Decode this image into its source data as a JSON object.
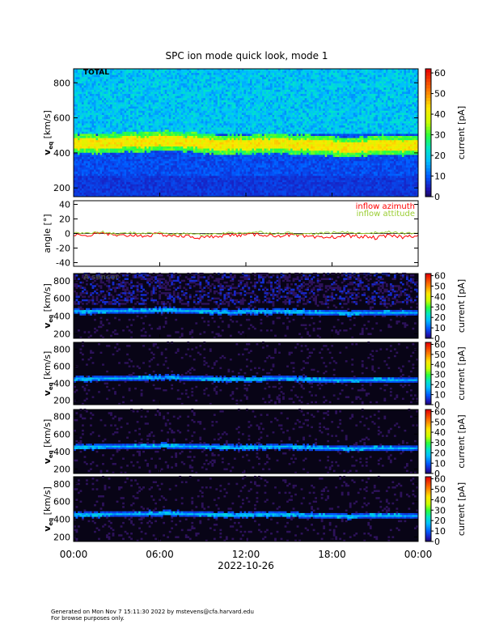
{
  "page": {
    "title": "SPC ion mode quick look, mode 1"
  },
  "chart_data": {
    "type": "heatmap",
    "title": "SPC ion mode quick look, mode 1",
    "x": {
      "ticks": [
        "00:00",
        "06:00",
        "12:00",
        "18:00",
        "00:00"
      ],
      "tick_hours": [
        0,
        6,
        12,
        18,
        24
      ],
      "date_label": "2022-10-26",
      "range_hours": [
        0,
        24
      ]
    },
    "panels": [
      {
        "id": "total",
        "type": "heatmap",
        "label": "TOTAL",
        "ylabel": "v_eq [km/s]",
        "ylabel_main": "v",
        "ylabel_sub": "eq",
        "ylabel_unit": " [km/s]",
        "yticks": [
          200,
          400,
          600,
          800
        ],
        "ylim": [
          150,
          880
        ],
        "colorbar": {
          "label": "current [pA]",
          "ticks": [
            0,
            10,
            20,
            30,
            40,
            50,
            60
          ],
          "range": [
            0,
            62
          ],
          "palette": "rainbow"
        },
        "band_center_kms": [
          450,
          452,
          455,
          460,
          462,
          465,
          470,
          468,
          462,
          455,
          450,
          448,
          450,
          452,
          455,
          452,
          448,
          445,
          440,
          432,
          438,
          445,
          445,
          442,
          440
        ]
      },
      {
        "id": "angles",
        "type": "line",
        "ylabel": "angle [°]",
        "yticks": [
          -40,
          -20,
          0,
          20,
          40
        ],
        "ylim": [
          -45,
          45
        ],
        "series": [
          {
            "name": "inflow azimuth",
            "color": "#ff0000"
          },
          {
            "name": "inflow attitude",
            "color": "#9acd32"
          }
        ],
        "azimuth_deg": [
          -1,
          -3,
          1,
          -4,
          -2,
          -3,
          -1,
          -3,
          -4,
          -6,
          -3,
          -2,
          -2,
          -1,
          -3,
          -2,
          -4,
          -6,
          -5,
          -3,
          -4,
          -6,
          -3,
          -5,
          -2
        ],
        "attitude_deg": [
          1,
          0,
          2,
          -1,
          1,
          0,
          1,
          -1,
          0,
          -2,
          0,
          1,
          1,
          2,
          0,
          1,
          -1,
          0,
          1,
          2,
          0,
          1,
          2,
          0,
          1
        ]
      },
      {
        "id": "sensor_a",
        "type": "heatmap",
        "label": "A sensor",
        "ylabel_main": "v",
        "ylabel_sub": "eq",
        "ylabel_unit": " [km/s]",
        "yticks": [
          200,
          400,
          600,
          800
        ],
        "ylim": [
          150,
          880
        ],
        "colorbar": {
          "label": "current [pA]",
          "ticks": [
            0,
            10,
            20,
            30,
            40,
            50,
            60
          ],
          "range": [
            0,
            62
          ],
          "palette": "rainbow"
        }
      },
      {
        "id": "sensor_b",
        "type": "heatmap",
        "ylabel_main": "v",
        "ylabel_sub": "eq",
        "ylabel_unit": " [km/s]",
        "yticks": [
          200,
          400,
          600,
          800
        ],
        "ylim": [
          150,
          880
        ],
        "colorbar": {
          "label": "current [pA]",
          "ticks": [
            0,
            10,
            20,
            30,
            40,
            50,
            60
          ],
          "range": [
            0,
            62
          ],
          "palette": "rainbow"
        }
      },
      {
        "id": "sensor_c",
        "type": "heatmap",
        "ylabel_main": "v",
        "ylabel_sub": "eq",
        "ylabel_unit": " [km/s]",
        "yticks": [
          200,
          400,
          600,
          800
        ],
        "ylim": [
          150,
          880
        ],
        "colorbar": {
          "label": "current [pA]",
          "ticks": [
            0,
            10,
            20,
            30,
            40,
            50,
            60
          ],
          "range": [
            0,
            62
          ],
          "palette": "rainbow"
        }
      },
      {
        "id": "sensor_d",
        "type": "heatmap",
        "ylabel_main": "v",
        "ylabel_sub": "eq",
        "ylabel_unit": " [km/s]",
        "yticks": [
          200,
          400,
          600,
          800
        ],
        "ylim": [
          150,
          880
        ],
        "colorbar": {
          "label": "current [pA]",
          "ticks": [
            0,
            10,
            20,
            30,
            40,
            50,
            60
          ],
          "range": [
            0,
            62
          ],
          "palette": "rainbow"
        }
      }
    ]
  },
  "footer": {
    "line1": "Generated on Mon Nov  7 15:11:30 2022 by mstevens@cfa.harvard.edu",
    "line2": "For browse purposes only."
  }
}
